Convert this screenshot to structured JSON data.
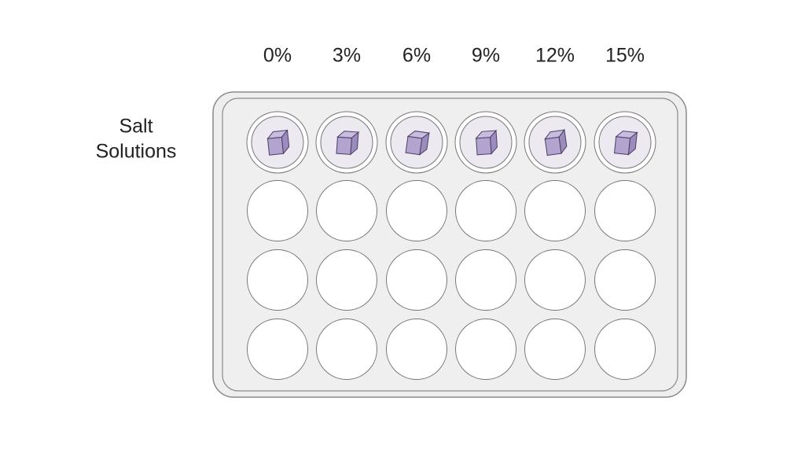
{
  "columns": [
    "0%",
    "3%",
    "6%",
    "9%",
    "12%",
    "15%"
  ],
  "row_label": [
    "Salt",
    "Solutions"
  ]
}
